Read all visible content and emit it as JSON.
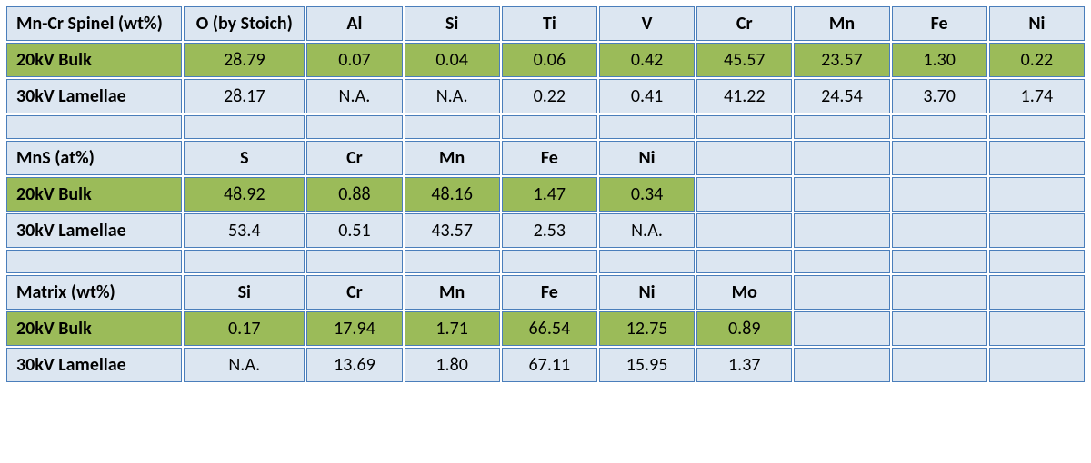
{
  "sections": [
    {
      "header_row": {
        "label": "Mn-Cr Spinel (wt%)",
        "cols": [
          "O (by Stoich)",
          "Al",
          "Si",
          "Ti",
          "V",
          "Cr",
          "Mn",
          "Fe",
          "Ni"
        ]
      },
      "rows": [
        {
          "label": "20kV  Bulk",
          "accent": "green",
          "cells": [
            "28.79",
            "0.07",
            "0.04",
            "0.06",
            "0.42",
            "45.57",
            "23.57",
            "1.30",
            "0.22"
          ],
          "accent_count": 9
        },
        {
          "label": "30kV Lamellae",
          "accent": "blue",
          "cells": [
            "28.17",
            "N.A.",
            "N.A.",
            "0.22",
            "0.41",
            "41.22",
            "24.54",
            "3.70",
            "1.74"
          ]
        }
      ]
    },
    {
      "header_row": {
        "label": "MnS (at%)",
        "cols": [
          "S",
          "Cr",
          "Mn",
          "Fe",
          "Ni",
          "",
          "",
          "",
          ""
        ]
      },
      "rows": [
        {
          "label": "20kV  Bulk",
          "accent": "green",
          "cells": [
            "48.92",
            "0.88",
            "48.16",
            "1.47",
            "0.34",
            "",
            "",
            "",
            ""
          ],
          "accent_count": 5
        },
        {
          "label": "30kV Lamellae",
          "accent": "blue",
          "cells": [
            "53.4",
            "0.51",
            "43.57",
            "2.53",
            "N.A.",
            "",
            "",
            "",
            ""
          ]
        }
      ]
    },
    {
      "header_row": {
        "label": "Matrix (wt%)",
        "cols": [
          "Si",
          "Cr",
          "Mn",
          "Fe",
          "Ni",
          "Mo",
          "",
          "",
          ""
        ]
      },
      "rows": [
        {
          "label": "20kV  Bulk",
          "accent": "green",
          "cells": [
            "0.17",
            "17.94",
            "1.71",
            "66.54",
            "12.75",
            "0.89",
            "",
            "",
            ""
          ],
          "accent_count": 6
        },
        {
          "label": "30kV Lamellae",
          "accent": "blue",
          "cells": [
            "N.A.",
            "13.69",
            "1.80",
            "67.11",
            "15.95",
            "1.37",
            "",
            "",
            ""
          ]
        }
      ]
    }
  ],
  "colors": {
    "border": "#4a7ebb",
    "blue_bg": "#dce6f1",
    "green_bg": "#9bbb59"
  }
}
